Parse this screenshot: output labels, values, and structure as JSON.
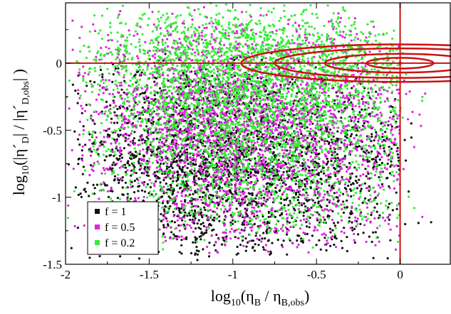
{
  "chart_data": {
    "type": "scatter",
    "title": "",
    "xlabel": {
      "main": "log",
      "sub": "10",
      "body": "(η",
      "num_sub": "B",
      "sep": " / η",
      "den_sub": "B,obs",
      "close": ")"
    },
    "ylabel": {
      "main": "log",
      "sub": "10",
      "body": "(|η´",
      "num_sub": "D",
      "sep": "| / |η´",
      "den_sub": "D,obs",
      "close": "| )"
    },
    "xlim": [
      -2.0,
      0.3
    ],
    "ylim": [
      -1.5,
      0.45
    ],
    "x_ticks": [
      "-2",
      "-1.5",
      "-1",
      "-0.5",
      "0"
    ],
    "x_tick_values": [
      -2,
      -1.5,
      -1,
      -0.5,
      0
    ],
    "y_ticks": [
      "-1.5",
      "-1",
      "-0.5",
      "0"
    ],
    "y_tick_values": [
      -1.5,
      -1,
      -0.5,
      0
    ],
    "reference_lines": {
      "x": 0,
      "y": 0,
      "color": "#cc1111"
    },
    "contours": {
      "center": [
        0,
        0
      ],
      "color": "#cc1111",
      "levels": [
        {
          "rx": 0.2,
          "ry": 0.04
        },
        {
          "rx": 0.45,
          "ry": 0.07
        },
        {
          "rx": 0.75,
          "ry": 0.11
        },
        {
          "rx": 0.95,
          "ry": 0.14
        }
      ]
    },
    "legend_position": "bottom-left",
    "series": [
      {
        "name": "f = 1",
        "color": "#111111",
        "cloud": {
          "x_range": [
            -2.0,
            0.3
          ],
          "x_mode": -1.2,
          "y_top": 0.1,
          "y_bottom": -1.5,
          "y_peak": -0.75,
          "count": 2600
        }
      },
      {
        "name": "f = 0.5",
        "color": "#dd22dd",
        "cloud": {
          "x_range": [
            -2.0,
            0.3
          ],
          "x_mode": -1.0,
          "y_top": 0.42,
          "y_bottom": -1.45,
          "y_peak": -0.35,
          "count": 3000
        }
      },
      {
        "name": "f = 0.2",
        "color": "#33ee33",
        "cloud": {
          "x_range": [
            -2.0,
            0.3
          ],
          "x_mode": -0.9,
          "y_top": 0.45,
          "y_bottom": -1.4,
          "y_peak": 0.05,
          "count": 3600
        }
      }
    ]
  }
}
